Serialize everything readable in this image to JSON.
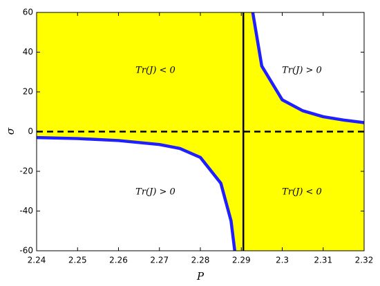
{
  "chart_data": {
    "type": "line",
    "x_label": "P",
    "y_label": "σ",
    "xlim": [
      2.24,
      2.32
    ],
    "ylim": [
      -60,
      60
    ],
    "xticks": [
      2.24,
      2.25,
      2.26,
      2.27,
      2.28,
      2.29,
      2.3,
      2.31,
      2.32
    ],
    "yticks": [
      -60,
      -40,
      -20,
      0,
      20,
      40,
      60
    ],
    "grid": false,
    "fill_color": "#ffff00",
    "vline": 2.2905,
    "vline_color": "#000000",
    "hline": 0,
    "hline_color": "#000000",
    "series": [
      {
        "color": "#1f1fff",
        "x": [
          2.24,
          2.25,
          2.26,
          2.27,
          2.275,
          2.28,
          2.285,
          2.2875,
          2.2884
        ],
        "values": [
          -3,
          -3.5,
          -4.5,
          -6.5,
          -8.5,
          -13,
          -26,
          -45,
          -60
        ]
      },
      {
        "color": "#1f1fff",
        "x": [
          2.2928,
          2.295,
          2.3,
          2.305,
          2.31,
          2.315,
          2.32
        ],
        "values": [
          60,
          33,
          16,
          10.5,
          7.5,
          5.8,
          4.5
        ]
      }
    ],
    "annotations": [
      "Tr(J) < 0",
      "Tr(J) > 0",
      "Tr(J) > 0",
      "Tr(J) < 0"
    ]
  }
}
